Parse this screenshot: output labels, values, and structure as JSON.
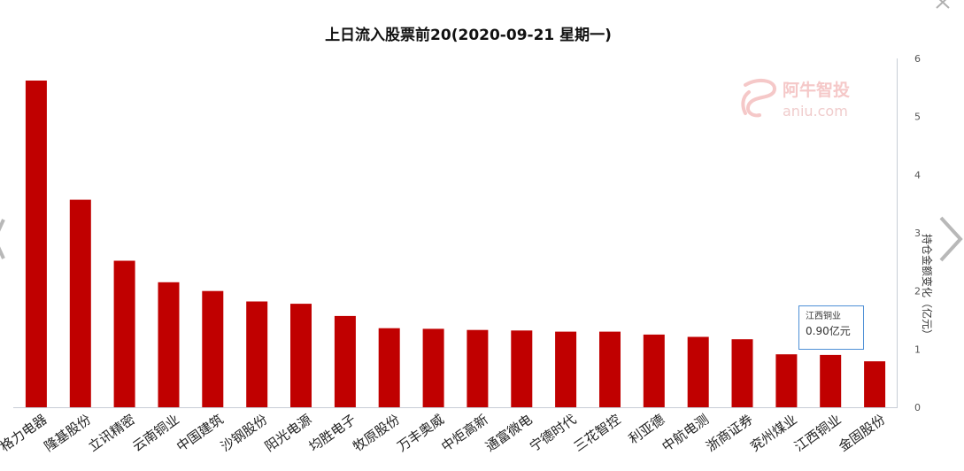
{
  "chart_data": {
    "type": "bar",
    "title": "上日流入股票前20(2020-09-21 星期一)",
    "ylabel": "持仓金额变化（亿元）",
    "ylim": [
      0,
      6
    ],
    "yticks": [
      "0",
      "1",
      "2",
      "3",
      "4",
      "5",
      "6"
    ],
    "y_axis_side": "right",
    "categories": [
      "格力电器",
      "隆基股份",
      "立讯精密",
      "云南铜业",
      "中国建筑",
      "沙钢股份",
      "阳光电源",
      "均胜电子",
      "牧原股份",
      "万丰奥威",
      "中炬高新",
      "通富微电",
      "宁德时代",
      "三花智控",
      "利亚德",
      "中航电测",
      "浙商证券",
      "兖州煤业",
      "江西铜业",
      "金固股份"
    ],
    "values": [
      5.62,
      3.57,
      2.52,
      2.15,
      2.0,
      1.82,
      1.78,
      1.57,
      1.36,
      1.35,
      1.33,
      1.32,
      1.3,
      1.3,
      1.25,
      1.21,
      1.17,
      0.91,
      0.9,
      0.79
    ],
    "bar_color": "#c00000",
    "grid": false,
    "tooltip": {
      "category": "江西铜业",
      "value_label": "0.90亿元"
    }
  },
  "watermark": {
    "brand_cn": "阿牛智投",
    "brand_en": "aniu.com",
    "color": "#f5c8c8"
  },
  "nav": {
    "close_icon": "close-icon",
    "prev_icon": "chevron-left-icon",
    "next_icon": "chevron-right-icon"
  }
}
